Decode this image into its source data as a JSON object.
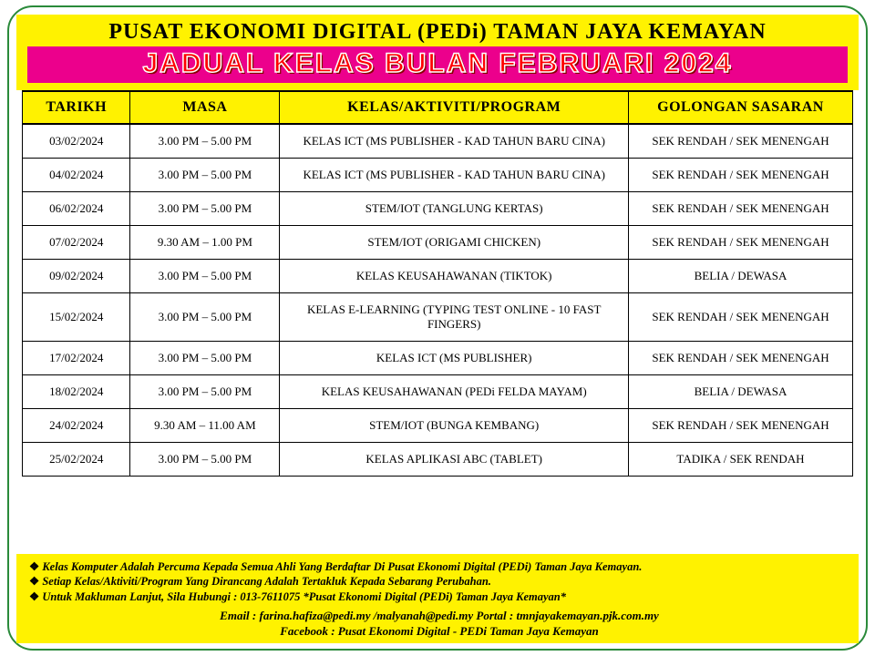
{
  "header": {
    "center_title": "PUSAT EKONOMI DIGITAL (PEDi) TAMAN JAYA KEMAYAN",
    "subtitle": "JADUAL KELAS BULAN FEBRUARI 2024"
  },
  "colors": {
    "yellow": "#fff200",
    "pink": "#ec008c",
    "green_border": "#2a8a3a",
    "subtitle_text": "#ff0000",
    "subtitle_stroke": "#ffffff"
  },
  "table": {
    "columns": [
      "TARIKH",
      "MASA",
      "KELAS/AKTIVITI/PROGRAM",
      "GOLONGAN SASARAN"
    ],
    "rows": [
      {
        "date": "03/02/2024",
        "time": "3.00 PM – 5.00 PM",
        "class": "KELAS ICT (MS PUBLISHER - KAD TAHUN BARU CINA)",
        "target": "SEK RENDAH / SEK MENENGAH"
      },
      {
        "date": "04/02/2024",
        "time": "3.00 PM – 5.00 PM",
        "class": "KELAS ICT (MS PUBLISHER - KAD TAHUN BARU CINA)",
        "target": "SEK RENDAH / SEK MENENGAH"
      },
      {
        "date": "06/02/2024",
        "time": "3.00 PM – 5.00 PM",
        "class": "STEM/IOT (TANGLUNG KERTAS)",
        "target": "SEK RENDAH / SEK MENENGAH"
      },
      {
        "date": "07/02/2024",
        "time": "9.30 AM – 1.00 PM",
        "class": "STEM/IOT (ORIGAMI CHICKEN)",
        "target": "SEK RENDAH / SEK MENENGAH"
      },
      {
        "date": "09/02/2024",
        "time": "3.00 PM – 5.00 PM",
        "class": "KELAS KEUSAHAWANAN (TIKTOK)",
        "target": "BELIA / DEWASA"
      },
      {
        "date": "15/02/2024",
        "time": "3.00 PM – 5.00 PM",
        "class": "KELAS E-LEARNING (TYPING TEST ONLINE - 10 FAST FINGERS)",
        "target": "SEK RENDAH / SEK MENENGAH"
      },
      {
        "date": "17/02/2024",
        "time": "3.00 PM – 5.00 PM",
        "class": "KELAS ICT (MS PUBLISHER)",
        "target": "SEK RENDAH / SEK MENENGAH"
      },
      {
        "date": "18/02/2024",
        "time": "3.00 PM – 5.00 PM",
        "class": "KELAS KEUSAHAWANAN (PEDi FELDA MAYAM)",
        "target": "BELIA / DEWASA"
      },
      {
        "date": "24/02/2024",
        "time": "9.30 AM – 11.00 AM",
        "class": "STEM/IOT (BUNGA KEMBANG)",
        "target": "SEK RENDAH / SEK MENENGAH"
      },
      {
        "date": "25/02/2024",
        "time": "3.00 PM – 5.00 PM",
        "class": "KELAS APLIKASI ABC (TABLET)",
        "target": "TADIKA / SEK RENDAH"
      }
    ]
  },
  "footer": {
    "notes": [
      "Kelas Komputer Adalah Percuma Kepada Semua Ahli Yang Berdaftar Di Pusat Ekonomi Digital (PEDi) Taman Jaya Kemayan.",
      "Setiap Kelas/Aktiviti/Program Yang Dirancang Adalah Tertakluk Kepada Sebarang Perubahan.",
      "Untuk Makluman Lanjut, Sila Hubungi : 013-7611075  *Pusat Ekonomi Digital (PEDi) Taman Jaya Kemayan*"
    ],
    "contact_line1": "Email : farina.hafiza@pedi.my /malyanah@pedi.my            Portal : tmnjayakemayan.pjk.com.my",
    "contact_line2": "Facebook : Pusat Ekonomi Digital - PEDi Taman Jaya Kemayan"
  }
}
